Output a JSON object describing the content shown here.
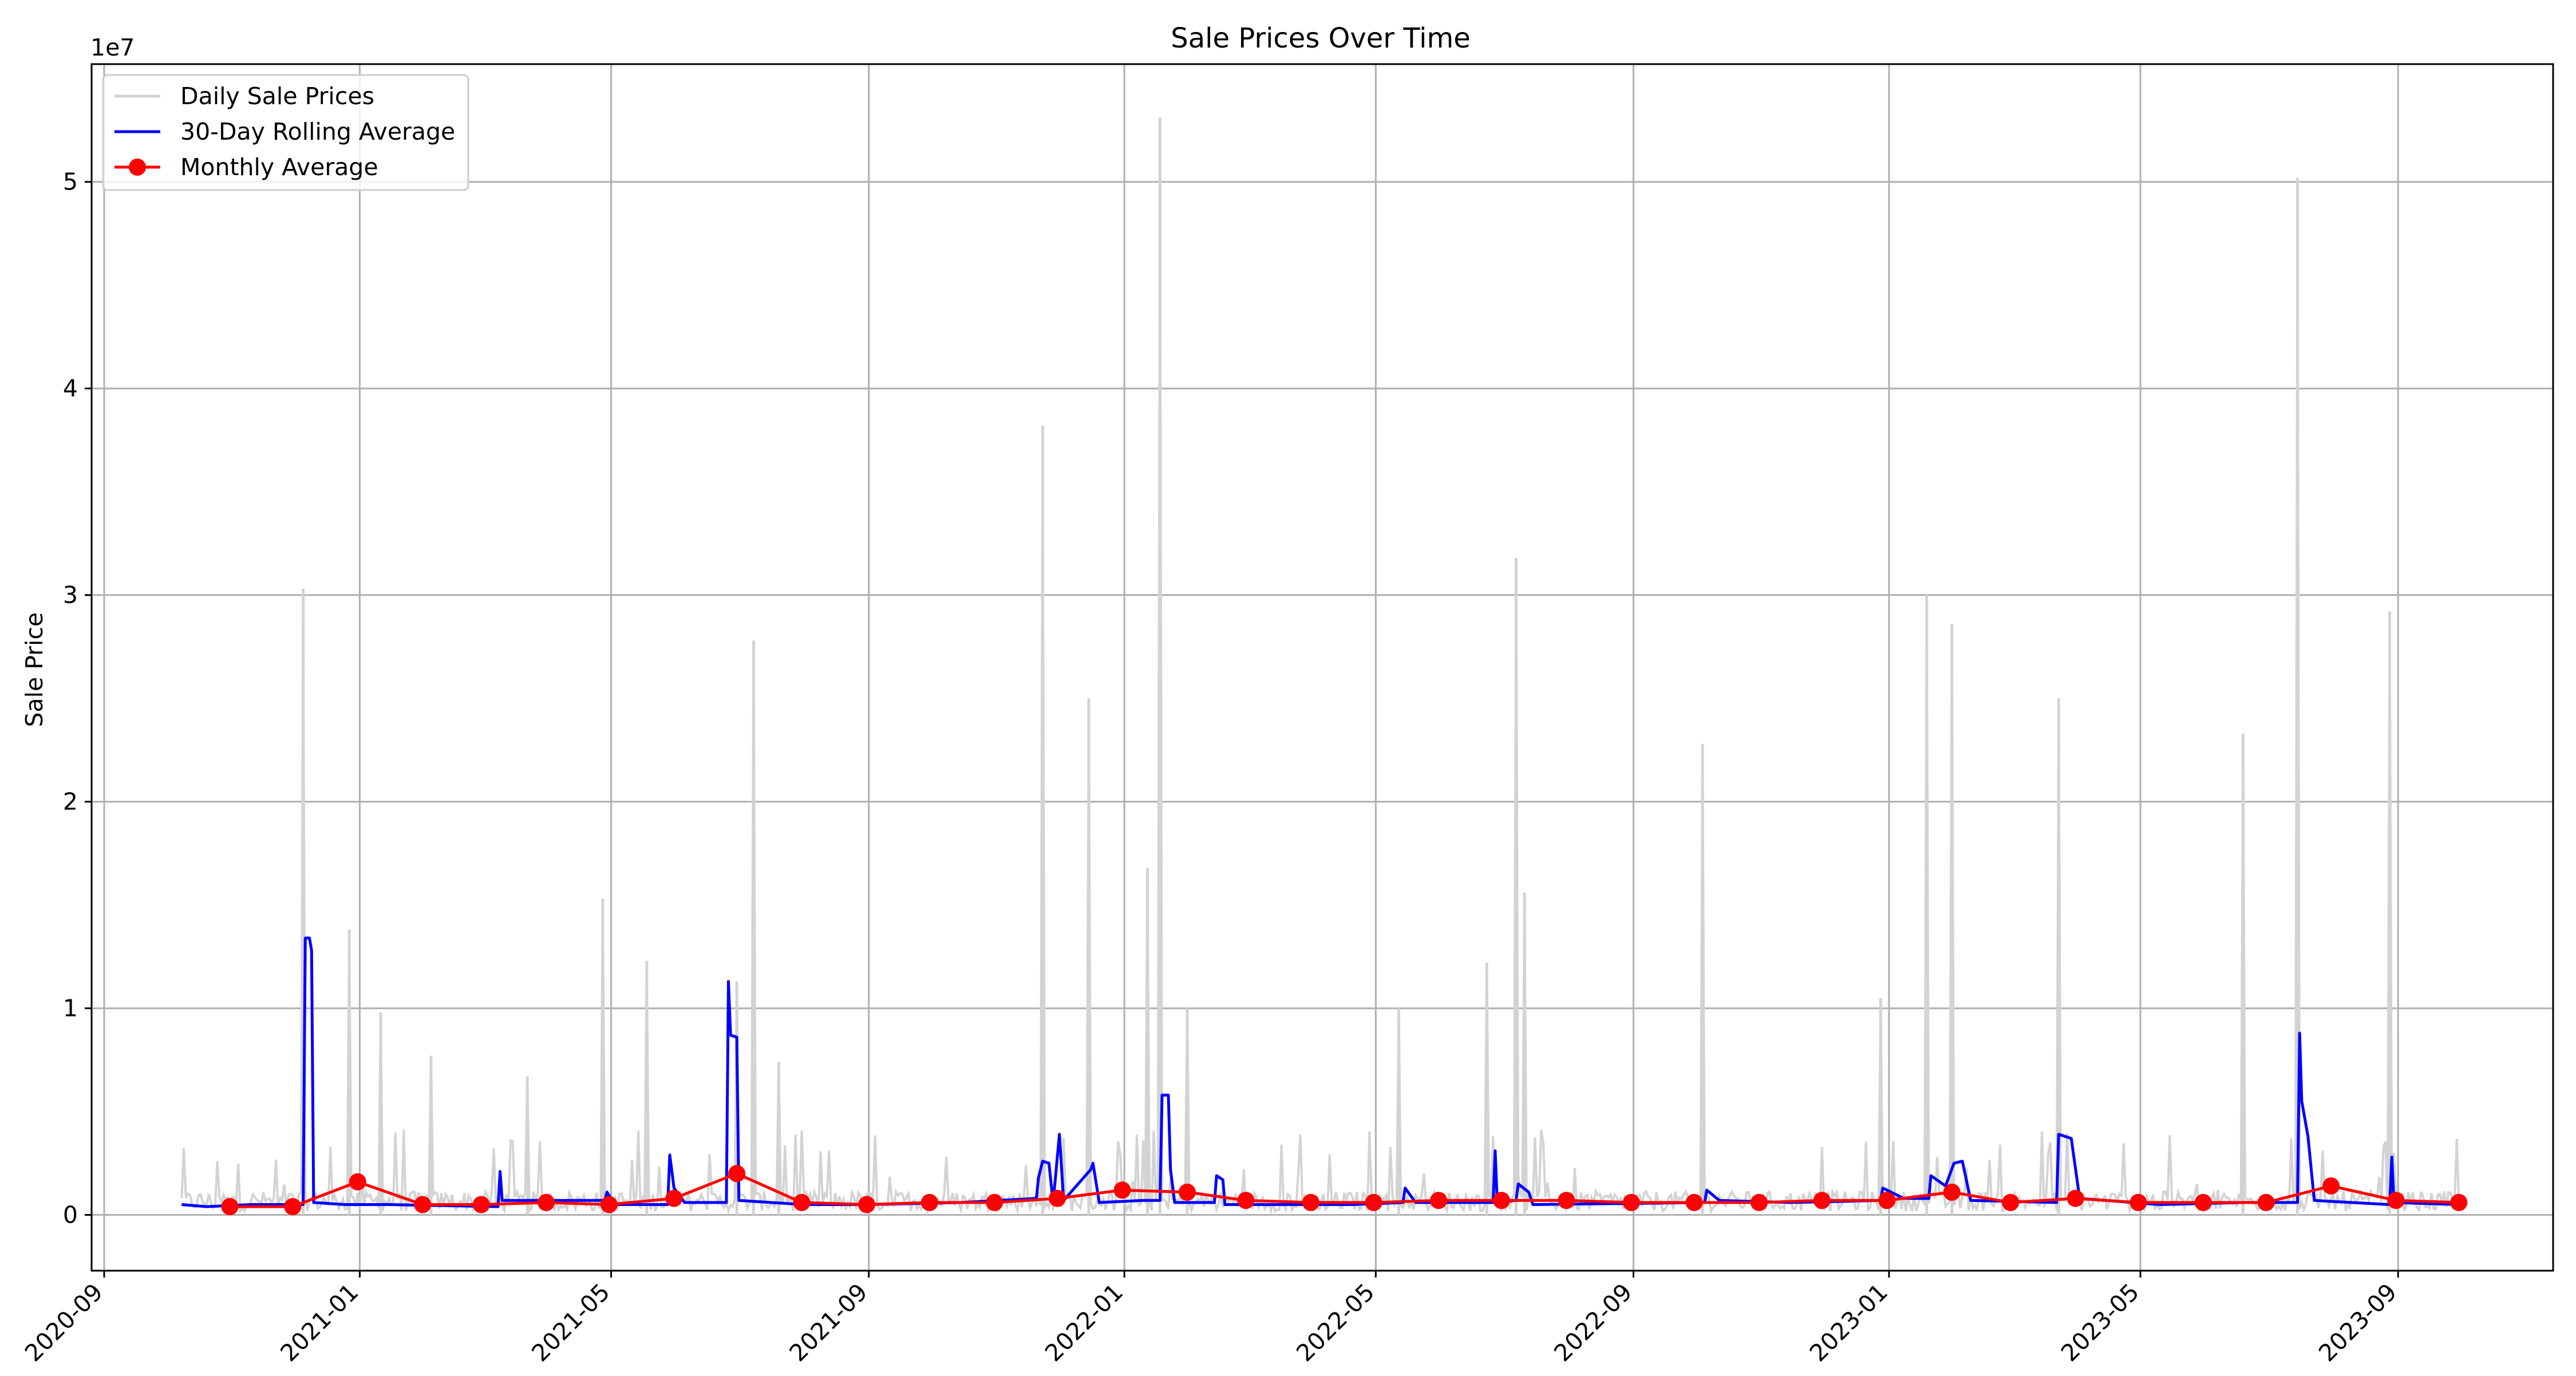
{
  "chart_data": {
    "type": "line",
    "title": "Sale Prices Over Time",
    "xlabel": "",
    "ylabel": "Sale Price",
    "y_offset_label": "1e7",
    "y_scale_factor": 10000000,
    "ylim": [
      -2700000,
      55700000
    ],
    "xlim": [
      "2020-08-26",
      "2023-11-14"
    ],
    "grid": true,
    "legend_position": "top-left",
    "x_ticks": [
      "2020-09",
      "2021-01",
      "2021-05",
      "2021-09",
      "2022-01",
      "2022-05",
      "2022-09",
      "2023-01",
      "2023-05",
      "2023-09"
    ],
    "y_ticks": [
      {
        "value": 0,
        "label": "0"
      },
      {
        "value": 10000000,
        "label": "1"
      },
      {
        "value": 20000000,
        "label": "2"
      },
      {
        "value": 30000000,
        "label": "3"
      },
      {
        "value": 40000000,
        "label": "4"
      },
      {
        "value": 50000000,
        "label": "5"
      }
    ],
    "colors": {
      "daily": "#d3d3d3",
      "rolling": "#0000ff",
      "monthly": "#ff0000",
      "grid": "#b0b0b0"
    },
    "series": [
      {
        "name": "Daily Sale Prices",
        "color": "#d3d3d3",
        "baseline": {
          "start": "2020-10-08",
          "end": "2023-09-30",
          "typical": 600000
        },
        "spikes": [
          {
            "date": "2020-12-05",
            "value": 30300000
          },
          {
            "date": "2020-12-27",
            "value": 13800000
          },
          {
            "date": "2021-01-11",
            "value": 9800000
          },
          {
            "date": "2021-02-04",
            "value": 7700000
          },
          {
            "date": "2021-03-22",
            "value": 6700000
          },
          {
            "date": "2021-04-27",
            "value": 15300000
          },
          {
            "date": "2021-05-18",
            "value": 12300000
          },
          {
            "date": "2021-06-30",
            "value": 11300000
          },
          {
            "date": "2021-07-08",
            "value": 27800000
          },
          {
            "date": "2021-07-20",
            "value": 7400000
          },
          {
            "date": "2021-11-23",
            "value": 38200000
          },
          {
            "date": "2021-12-15",
            "value": 25000000
          },
          {
            "date": "2022-01-12",
            "value": 16800000
          },
          {
            "date": "2022-01-18",
            "value": 53100000
          },
          {
            "date": "2022-01-31",
            "value": 10000000
          },
          {
            "date": "2022-05-12",
            "value": 10000000
          },
          {
            "date": "2022-06-23",
            "value": 12200000
          },
          {
            "date": "2022-07-07",
            "value": 31800000
          },
          {
            "date": "2022-07-11",
            "value": 15600000
          },
          {
            "date": "2022-10-04",
            "value": 22800000
          },
          {
            "date": "2022-12-28",
            "value": 10500000
          },
          {
            "date": "2023-01-19",
            "value": 30000000
          },
          {
            "date": "2023-01-31",
            "value": 28600000
          },
          {
            "date": "2023-03-23",
            "value": 25000000
          },
          {
            "date": "2023-06-19",
            "value": 23300000
          },
          {
            "date": "2023-07-15",
            "value": 50200000
          },
          {
            "date": "2023-08-28",
            "value": 29200000
          }
        ]
      },
      {
        "name": "30-Day Rolling Average",
        "color": "#0000ff",
        "points": [
          [
            "2020-10-08",
            500000
          ],
          [
            "2020-10-20",
            400000
          ],
          [
            "2020-11-10",
            500000
          ],
          [
            "2020-11-25",
            500000
          ],
          [
            "2020-12-05",
            500000
          ],
          [
            "2020-12-06",
            13400000
          ],
          [
            "2020-12-08",
            13400000
          ],
          [
            "2020-12-09",
            12800000
          ],
          [
            "2020-12-10",
            600000
          ],
          [
            "2020-12-25",
            500000
          ],
          [
            "2021-01-15",
            500000
          ],
          [
            "2021-03-08",
            400000
          ],
          [
            "2021-03-09",
            2100000
          ],
          [
            "2021-03-10",
            700000
          ],
          [
            "2021-04-28",
            700000
          ],
          [
            "2021-04-29",
            1100000
          ],
          [
            "2021-05-03",
            500000
          ],
          [
            "2021-05-28",
            500000
          ],
          [
            "2021-05-29",
            2900000
          ],
          [
            "2021-05-31",
            1300000
          ],
          [
            "2021-06-05",
            600000
          ],
          [
            "2021-06-25",
            600000
          ],
          [
            "2021-06-26",
            11300000
          ],
          [
            "2021-06-27",
            8700000
          ],
          [
            "2021-06-30",
            8600000
          ],
          [
            "2021-07-01",
            700000
          ],
          [
            "2021-08-01",
            500000
          ],
          [
            "2021-09-01",
            500000
          ],
          [
            "2021-10-15",
            600000
          ],
          [
            "2021-11-20",
            800000
          ],
          [
            "2021-11-21",
            1800000
          ],
          [
            "2021-11-23",
            2600000
          ],
          [
            "2021-11-26",
            2500000
          ],
          [
            "2021-11-28",
            600000
          ],
          [
            "2021-12-01",
            3900000
          ],
          [
            "2021-12-03",
            700000
          ],
          [
            "2021-12-16",
            2200000
          ],
          [
            "2021-12-17",
            2500000
          ],
          [
            "2021-12-20",
            600000
          ],
          [
            "2022-01-10",
            700000
          ],
          [
            "2022-01-18",
            700000
          ],
          [
            "2022-01-19",
            5800000
          ],
          [
            "2022-01-22",
            5800000
          ],
          [
            "2022-01-23",
            2200000
          ],
          [
            "2022-01-25",
            600000
          ],
          [
            "2022-02-13",
            600000
          ],
          [
            "2022-02-14",
            1900000
          ],
          [
            "2022-02-17",
            1700000
          ],
          [
            "2022-02-18",
            500000
          ],
          [
            "2022-04-20",
            500000
          ],
          [
            "2022-05-14",
            600000
          ],
          [
            "2022-05-15",
            1300000
          ],
          [
            "2022-05-20",
            600000
          ],
          [
            "2022-06-26",
            600000
          ],
          [
            "2022-06-27",
            3100000
          ],
          [
            "2022-06-28",
            600000
          ],
          [
            "2022-07-07",
            700000
          ],
          [
            "2022-07-08",
            1500000
          ],
          [
            "2022-07-13",
            1100000
          ],
          [
            "2022-07-15",
            500000
          ],
          [
            "2022-10-05",
            600000
          ],
          [
            "2022-10-06",
            1200000
          ],
          [
            "2022-10-12",
            700000
          ],
          [
            "2022-11-15",
            600000
          ],
          [
            "2022-12-28",
            700000
          ],
          [
            "2022-12-29",
            1300000
          ],
          [
            "2023-01-08",
            800000
          ],
          [
            "2023-01-20",
            800000
          ],
          [
            "2023-01-21",
            1900000
          ],
          [
            "2023-01-28",
            1400000
          ],
          [
            "2023-02-01",
            2500000
          ],
          [
            "2023-02-05",
            2600000
          ],
          [
            "2023-02-09",
            700000
          ],
          [
            "2023-03-22",
            600000
          ],
          [
            "2023-03-23",
            3900000
          ],
          [
            "2023-03-29",
            3700000
          ],
          [
            "2023-04-02",
            800000
          ],
          [
            "2023-05-10",
            500000
          ],
          [
            "2023-06-20",
            600000
          ],
          [
            "2023-07-15",
            600000
          ],
          [
            "2023-07-16",
            8800000
          ],
          [
            "2023-07-17",
            5500000
          ],
          [
            "2023-07-20",
            3800000
          ],
          [
            "2023-07-23",
            700000
          ],
          [
            "2023-08-28",
            500000
          ],
          [
            "2023-08-29",
            2800000
          ],
          [
            "2023-08-30",
            600000
          ],
          [
            "2023-09-30",
            500000
          ]
        ]
      },
      {
        "name": "Monthly Average",
        "color": "#ff0000",
        "points": [
          [
            "2020-10-31",
            400000
          ],
          [
            "2020-11-30",
            400000
          ],
          [
            "2020-12-31",
            1600000
          ],
          [
            "2021-01-31",
            500000
          ],
          [
            "2021-02-28",
            500000
          ],
          [
            "2021-03-31",
            600000
          ],
          [
            "2021-04-30",
            500000
          ],
          [
            "2021-05-31",
            800000
          ],
          [
            "2021-06-30",
            2000000
          ],
          [
            "2021-07-31",
            600000
          ],
          [
            "2021-08-31",
            500000
          ],
          [
            "2021-09-30",
            600000
          ],
          [
            "2021-10-31",
            600000
          ],
          [
            "2021-11-30",
            800000
          ],
          [
            "2021-12-31",
            1200000
          ],
          [
            "2022-01-31",
            1100000
          ],
          [
            "2022-02-28",
            700000
          ],
          [
            "2022-03-31",
            600000
          ],
          [
            "2022-04-30",
            600000
          ],
          [
            "2022-05-31",
            700000
          ],
          [
            "2022-06-30",
            700000
          ],
          [
            "2022-07-31",
            700000
          ],
          [
            "2022-08-31",
            600000
          ],
          [
            "2022-09-30",
            600000
          ],
          [
            "2022-10-31",
            600000
          ],
          [
            "2022-11-30",
            700000
          ],
          [
            "2022-12-31",
            700000
          ],
          [
            "2023-01-31",
            1100000
          ],
          [
            "2023-02-28",
            600000
          ],
          [
            "2023-03-31",
            800000
          ],
          [
            "2023-04-30",
            600000
          ],
          [
            "2023-05-31",
            600000
          ],
          [
            "2023-06-30",
            600000
          ],
          [
            "2023-07-31",
            1400000
          ],
          [
            "2023-08-31",
            700000
          ],
          [
            "2023-09-30",
            600000
          ]
        ]
      }
    ]
  }
}
